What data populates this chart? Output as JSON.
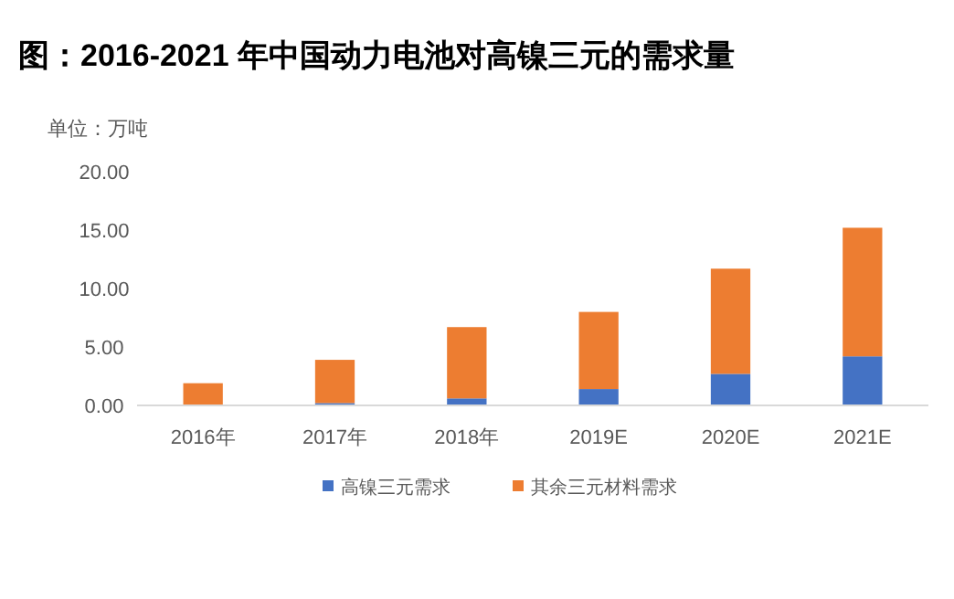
{
  "chart_data": {
    "type": "bar",
    "title": "图：2016-2021 年中国动力电池对高镍三元的需求量",
    "ylabel": "单位：万吨",
    "stacked": true,
    "legend": "bottom",
    "grid": false,
    "categories": [
      "2016年",
      "2017年",
      "2018年",
      "2019E",
      "2020E",
      "2021E"
    ],
    "series": [
      {
        "name": "高镍三元需求",
        "color": "#4472c4",
        "values": [
          0,
          0.2,
          0.6,
          1.4,
          2.7,
          4.2
        ]
      },
      {
        "name": "其余三元材料需求",
        "color": "#ed7d31",
        "values": [
          1.9,
          3.7,
          6.1,
          6.6,
          9.0,
          11.0
        ]
      }
    ],
    "ylim": [
      0,
      20
    ],
    "yticks": [
      {
        "value": 0,
        "label": "0.00"
      },
      {
        "value": 5,
        "label": "5.00"
      },
      {
        "value": 10,
        "label": "10.00"
      },
      {
        "value": 15,
        "label": "15.00"
      },
      {
        "value": 20,
        "label": "20.00"
      }
    ]
  }
}
